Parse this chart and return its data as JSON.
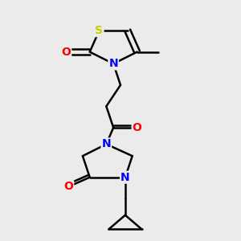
{
  "background_color": "#ebebeb",
  "atom_colors": {
    "S": "#cccc00",
    "N": "#0000ff",
    "O": "#ff0000",
    "C": "#000000"
  },
  "bond_width": 1.8,
  "figsize": [
    3.0,
    3.0
  ],
  "dpi": 100
}
